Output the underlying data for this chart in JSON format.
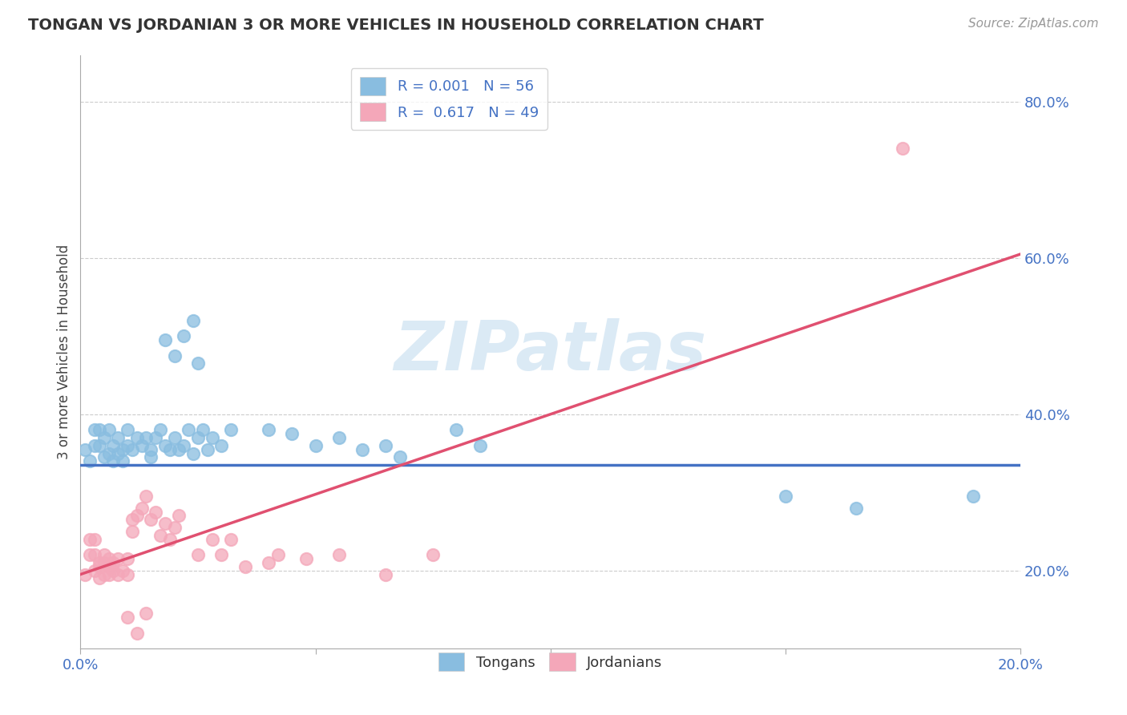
{
  "title": "TONGAN VS JORDANIAN 3 OR MORE VEHICLES IN HOUSEHOLD CORRELATION CHART",
  "source_text": "Source: ZipAtlas.com",
  "ylabel": "3 or more Vehicles in Household",
  "ytick_labels": [
    "20.0%",
    "40.0%",
    "60.0%",
    "80.0%"
  ],
  "ytick_values": [
    0.2,
    0.4,
    0.6,
    0.8
  ],
  "xtick_labels": [
    "0.0%",
    "",
    "",
    "",
    "20.0%"
  ],
  "xtick_values": [
    0.0,
    0.05,
    0.1,
    0.15,
    0.2
  ],
  "xmin": 0.0,
  "xmax": 0.2,
  "ymin": 0.1,
  "ymax": 0.86,
  "tongans_color": "#89bde0",
  "jordanians_color": "#f4a7b9",
  "tonga_line_color": "#4472c4",
  "jordan_line_color": "#e05070",
  "tonga_line_y0": 0.335,
  "tonga_line_y1": 0.335,
  "jordan_line_y0": 0.195,
  "jordan_line_y1": 0.605,
  "watermark": "ZIPatlas",
  "watermark_color": "#c8dff0",
  "legend_label1": "R = 0.001   N = 56",
  "legend_label2": "R =  0.617   N = 49",
  "bottom_label1": "Tongans",
  "bottom_label2": "Jordanians",
  "tongans_scatter": [
    [
      0.001,
      0.355
    ],
    [
      0.002,
      0.34
    ],
    [
      0.003,
      0.38
    ],
    [
      0.003,
      0.36
    ],
    [
      0.004,
      0.36
    ],
    [
      0.004,
      0.38
    ],
    [
      0.005,
      0.37
    ],
    [
      0.005,
      0.345
    ],
    [
      0.006,
      0.38
    ],
    [
      0.006,
      0.35
    ],
    [
      0.007,
      0.36
    ],
    [
      0.007,
      0.34
    ],
    [
      0.008,
      0.37
    ],
    [
      0.008,
      0.35
    ],
    [
      0.009,
      0.355
    ],
    [
      0.009,
      0.34
    ],
    [
      0.01,
      0.38
    ],
    [
      0.01,
      0.36
    ],
    [
      0.011,
      0.355
    ],
    [
      0.012,
      0.37
    ],
    [
      0.013,
      0.36
    ],
    [
      0.014,
      0.37
    ],
    [
      0.015,
      0.355
    ],
    [
      0.015,
      0.345
    ],
    [
      0.016,
      0.37
    ],
    [
      0.017,
      0.38
    ],
    [
      0.018,
      0.36
    ],
    [
      0.019,
      0.355
    ],
    [
      0.02,
      0.37
    ],
    [
      0.021,
      0.355
    ],
    [
      0.022,
      0.36
    ],
    [
      0.023,
      0.38
    ],
    [
      0.024,
      0.35
    ],
    [
      0.025,
      0.37
    ],
    [
      0.026,
      0.38
    ],
    [
      0.027,
      0.355
    ],
    [
      0.028,
      0.37
    ],
    [
      0.03,
      0.36
    ],
    [
      0.032,
      0.38
    ],
    [
      0.02,
      0.475
    ],
    [
      0.022,
      0.5
    ],
    [
      0.024,
      0.52
    ],
    [
      0.018,
      0.495
    ],
    [
      0.025,
      0.465
    ],
    [
      0.04,
      0.38
    ],
    [
      0.045,
      0.375
    ],
    [
      0.05,
      0.36
    ],
    [
      0.055,
      0.37
    ],
    [
      0.06,
      0.355
    ],
    [
      0.065,
      0.36
    ],
    [
      0.068,
      0.345
    ],
    [
      0.08,
      0.38
    ],
    [
      0.085,
      0.36
    ],
    [
      0.15,
      0.295
    ],
    [
      0.165,
      0.28
    ],
    [
      0.19,
      0.295
    ]
  ],
  "jordanians_scatter": [
    [
      0.001,
      0.195
    ],
    [
      0.002,
      0.22
    ],
    [
      0.002,
      0.24
    ],
    [
      0.003,
      0.2
    ],
    [
      0.003,
      0.22
    ],
    [
      0.003,
      0.24
    ],
    [
      0.004,
      0.205
    ],
    [
      0.004,
      0.19
    ],
    [
      0.004,
      0.21
    ],
    [
      0.005,
      0.22
    ],
    [
      0.005,
      0.195
    ],
    [
      0.005,
      0.21
    ],
    [
      0.006,
      0.205
    ],
    [
      0.006,
      0.195
    ],
    [
      0.006,
      0.215
    ],
    [
      0.007,
      0.2
    ],
    [
      0.007,
      0.21
    ],
    [
      0.008,
      0.195
    ],
    [
      0.008,
      0.215
    ],
    [
      0.009,
      0.2
    ],
    [
      0.01,
      0.215
    ],
    [
      0.01,
      0.195
    ],
    [
      0.011,
      0.265
    ],
    [
      0.011,
      0.25
    ],
    [
      0.012,
      0.27
    ],
    [
      0.013,
      0.28
    ],
    [
      0.014,
      0.295
    ],
    [
      0.015,
      0.265
    ],
    [
      0.016,
      0.275
    ],
    [
      0.017,
      0.245
    ],
    [
      0.018,
      0.26
    ],
    [
      0.019,
      0.24
    ],
    [
      0.02,
      0.255
    ],
    [
      0.021,
      0.27
    ],
    [
      0.01,
      0.14
    ],
    [
      0.012,
      0.12
    ],
    [
      0.014,
      0.145
    ],
    [
      0.025,
      0.22
    ],
    [
      0.028,
      0.24
    ],
    [
      0.03,
      0.22
    ],
    [
      0.032,
      0.24
    ],
    [
      0.035,
      0.205
    ],
    [
      0.04,
      0.21
    ],
    [
      0.042,
      0.22
    ],
    [
      0.048,
      0.215
    ],
    [
      0.055,
      0.22
    ],
    [
      0.065,
      0.195
    ],
    [
      0.075,
      0.22
    ],
    [
      0.175,
      0.74
    ]
  ]
}
